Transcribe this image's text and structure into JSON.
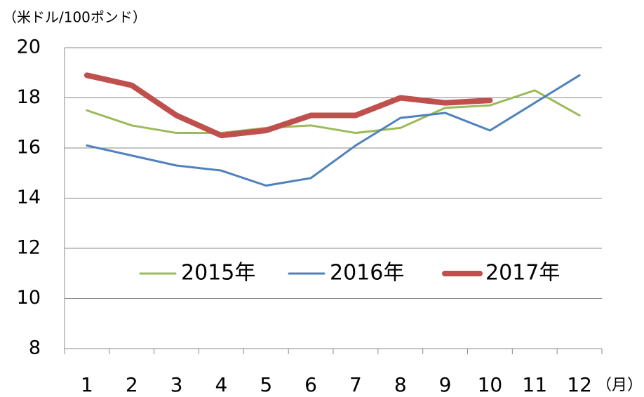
{
  "chart_data": {
    "type": "line",
    "y_label": "（米ドル/100ポンド）",
    "x_label": "（月）",
    "categories": [
      "1",
      "2",
      "3",
      "4",
      "5",
      "6",
      "7",
      "8",
      "9",
      "10",
      "11",
      "12"
    ],
    "series": [
      {
        "name": "2015年",
        "color": "#9bbb59",
        "values": [
          17.5,
          16.9,
          16.6,
          16.6,
          16.8,
          16.9,
          16.6,
          16.8,
          17.6,
          17.7,
          18.3,
          17.3
        ]
      },
      {
        "name": "2016年",
        "color": "#4f81bd",
        "values": [
          16.1,
          15.7,
          15.3,
          15.1,
          14.5,
          14.8,
          16.1,
          17.2,
          17.4,
          16.7,
          17.8,
          18.9
        ]
      },
      {
        "name": "2017年",
        "color": "#c0504d",
        "values": [
          18.9,
          18.5,
          17.3,
          16.5,
          16.7,
          17.3,
          17.3,
          18.0,
          17.8,
          17.9,
          null,
          null
        ]
      }
    ],
    "ylim": [
      8,
      20
    ],
    "yticks": [
      8,
      10,
      12,
      14,
      16,
      18,
      20
    ],
    "grid": true
  }
}
